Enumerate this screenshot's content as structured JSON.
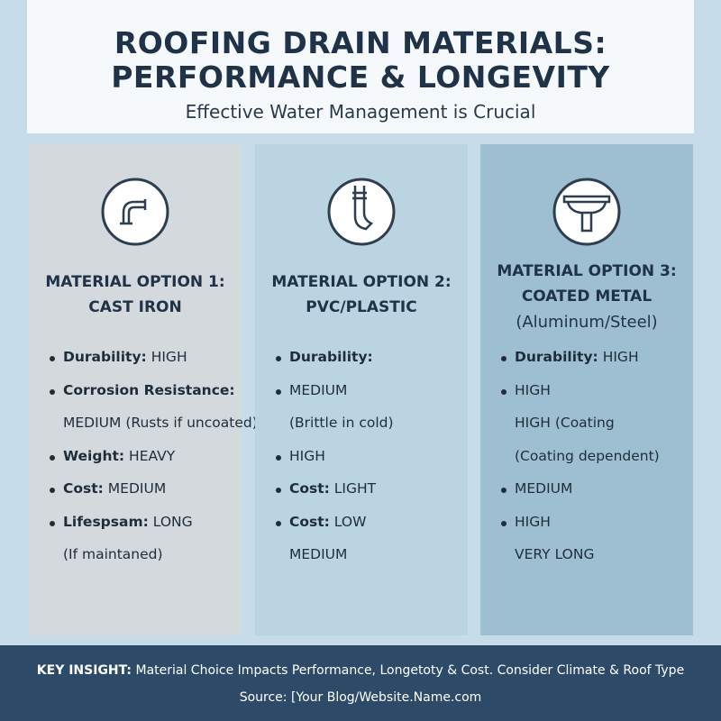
{
  "header": {
    "title": [
      "ROOFING DRAIN MATERIALS:",
      "PERFORMANCE & LONGEVITY"
    ],
    "subtitle": "Effective Water Management is Crucial"
  },
  "columns": [
    {
      "heading": [
        "MATERIAL OPTION 1:",
        "CAST IRON"
      ],
      "bullets": [
        {
          "label": "Durability:",
          "value": "HIGH"
        },
        {
          "label": "Corrosion Resistance:",
          "notes": [
            "MEDIUM (Rusts if uncoated)"
          ]
        },
        {
          "label": "Weight:",
          "value": "HEAVY"
        },
        {
          "label": "Cost:",
          "value": "MEDIUM"
        },
        {
          "label": "Lifespsam:",
          "value": "LONG",
          "notes": [
            "(If maintaned)"
          ]
        }
      ]
    },
    {
      "heading": [
        "MATERIAL OPTION 2:",
        "PVC/PLASTIC"
      ],
      "bullets": [
        {
          "label": "Durability:"
        },
        {
          "value": "MEDIUM",
          "notes": [
            "(Brittle in cold)"
          ]
        },
        {
          "value": "HIGH"
        },
        {
          "label": "Cost:",
          "value": "LIGHT"
        },
        {
          "label": "Cost:",
          "value": "LOW",
          "notes": [
            "MEDIUM"
          ]
        }
      ]
    },
    {
      "heading": [
        "MATERIAL OPTION 3:",
        "COATED METAL",
        "(Aluminum/Steel)"
      ],
      "bullets": [
        {
          "label": "Durability:",
          "value": "HIGH"
        },
        {
          "value": "HIGH",
          "notes": [
            "HIGH (Coating",
            "(Coating dependent)"
          ]
        },
        {
          "value": "MEDIUM"
        },
        {
          "value": "HIGH",
          "notes": [
            "VERY LONG"
          ]
        }
      ]
    }
  ],
  "footer": {
    "insight_label": "KEY INSIGHT:",
    "insight": "Material Choice Impacts Performance, Longetoty & Cost. Consider Climate & Roof Type",
    "source": "Source: [Your Blog/Website.Name.com"
  }
}
